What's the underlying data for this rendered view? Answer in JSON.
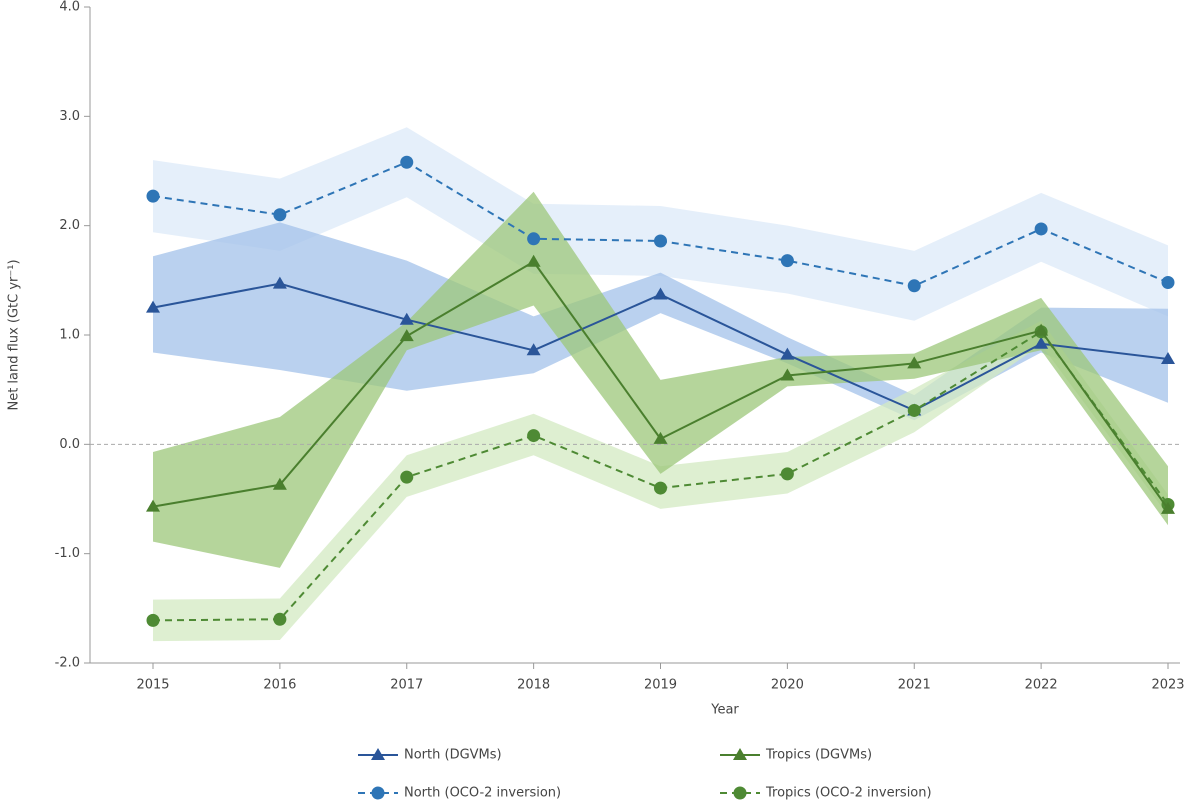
{
  "chart_data": {
    "type": "line",
    "ylabel": "Net land flux (GtC yr⁻¹)",
    "xlabel": "Year",
    "categories": [
      "2015",
      "2016",
      "2017",
      "2018",
      "2019",
      "2020",
      "2021",
      "2022",
      "2023"
    ],
    "ylim": [
      -2,
      4
    ],
    "yticks": [
      {
        "value": -2,
        "label": "-2.0"
      },
      {
        "value": -1,
        "label": "-1.0"
      },
      {
        "value": 0,
        "label": "0.0"
      },
      {
        "value": 1,
        "label": "1.0"
      },
      {
        "value": 2,
        "label": "2.0"
      },
      {
        "value": 3,
        "label": "3.0"
      },
      {
        "value": 4,
        "label": "4.0"
      }
    ],
    "zero_line": true,
    "series": [
      {
        "name": "North (OCO-2 inversion)",
        "color": "#2e75b6",
        "band_color": "#dce9f8",
        "marker": "circle",
        "dashed": true,
        "values": [
          2.27,
          2.1,
          2.58,
          1.88,
          1.86,
          1.68,
          1.45,
          1.97,
          1.48
        ],
        "upper": [
          2.6,
          2.43,
          2.9,
          2.2,
          2.18,
          2.0,
          1.77,
          2.3,
          1.82
        ],
        "lower": [
          1.94,
          1.77,
          2.26,
          1.56,
          1.54,
          1.38,
          1.13,
          1.67,
          1.17
        ]
      },
      {
        "name": "North (DGVMs)",
        "color": "#2a5599",
        "band_color": "#a3c2ea",
        "marker": "triangle",
        "dashed": false,
        "values": [
          1.25,
          1.47,
          1.14,
          0.86,
          1.37,
          0.82,
          0.31,
          0.92,
          0.78
        ],
        "upper": [
          1.72,
          2.03,
          1.68,
          1.17,
          1.57,
          0.98,
          0.45,
          1.25,
          1.24
        ],
        "lower": [
          0.84,
          0.68,
          0.49,
          0.65,
          1.2,
          0.74,
          0.22,
          0.84,
          0.38
        ]
      },
      {
        "name": "Tropics (OCO-2 inversion)",
        "color": "#4e8a34",
        "band_color": "#d3e9c2",
        "marker": "circle",
        "dashed": true,
        "values": [
          -1.61,
          -1.6,
          -0.3,
          0.08,
          -0.4,
          -0.27,
          0.31,
          1.03,
          -0.55
        ],
        "upper": [
          -1.42,
          -1.41,
          -0.1,
          0.28,
          -0.2,
          -0.07,
          0.51,
          1.13,
          -0.46
        ],
        "lower": [
          -1.8,
          -1.79,
          -0.48,
          -0.1,
          -0.59,
          -0.45,
          0.11,
          0.91,
          -0.65
        ]
      },
      {
        "name": "Tropics (DGVMs)",
        "color": "#4a7f2e",
        "band_color": "#9cc779",
        "marker": "triangle",
        "dashed": false,
        "values": [
          -0.57,
          -0.37,
          0.99,
          1.67,
          0.05,
          0.63,
          0.74,
          1.04,
          -0.59
        ],
        "upper": [
          -0.07,
          0.25,
          1.12,
          2.31,
          0.59,
          0.8,
          0.83,
          1.34,
          -0.2
        ],
        "lower": [
          -0.89,
          -1.13,
          0.86,
          1.27,
          -0.27,
          0.53,
          0.6,
          0.86,
          -0.74
        ]
      }
    ]
  }
}
